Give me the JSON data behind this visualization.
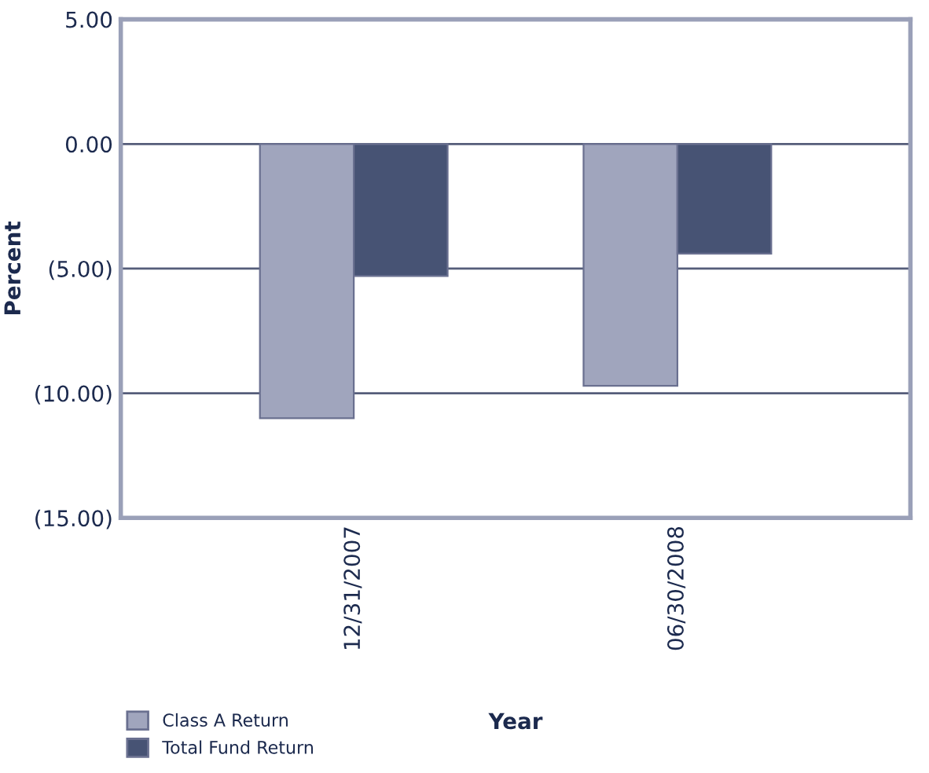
{
  "chart_data": {
    "type": "bar",
    "xlabel": "Year",
    "ylabel": "Percent",
    "categories": [
      "12/31/2007",
      "06/30/2008"
    ],
    "series": [
      {
        "name": "Class A Return",
        "color": "#a0a5bd",
        "values": [
          -11.0,
          -9.7
        ]
      },
      {
        "name": "Total Fund Return",
        "color": "#475374",
        "values": [
          -5.3,
          -4.4
        ]
      }
    ],
    "ylim": [
      -15,
      5
    ],
    "yticks": [
      {
        "value": 5,
        "label": "5.00"
      },
      {
        "value": 0,
        "label": "0.00"
      },
      {
        "value": -5,
        "label": "(5.00)"
      },
      {
        "value": -10,
        "label": "(10.00)"
      },
      {
        "value": -15,
        "label": "(15.00)"
      }
    ],
    "grid": "y",
    "legend": "bottom left"
  }
}
